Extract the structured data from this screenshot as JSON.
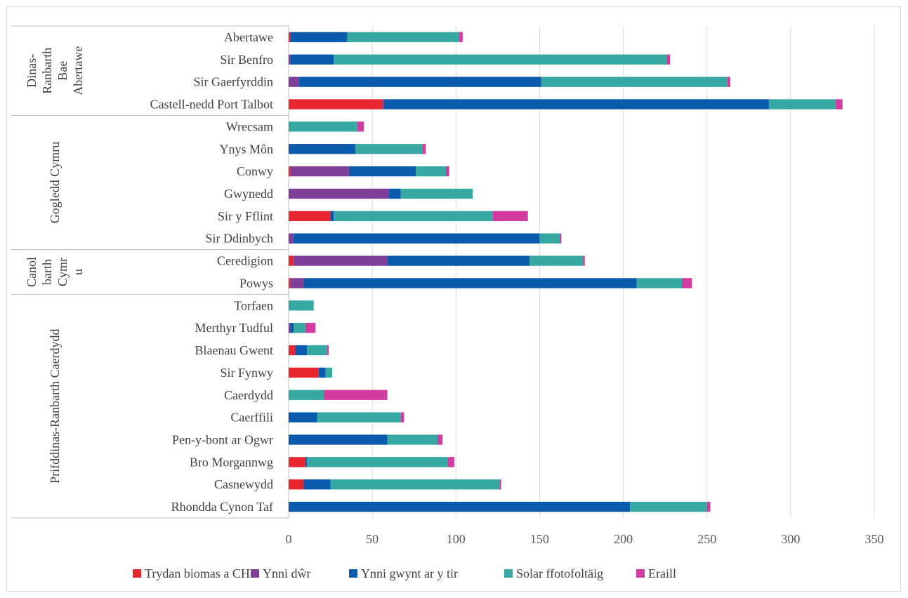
{
  "chart_data": {
    "type": "bar",
    "orientation": "horizontal",
    "stacked": true,
    "xlim": [
      0,
      350
    ],
    "x_ticks": [
      0,
      50,
      100,
      150,
      200,
      250,
      300,
      350
    ],
    "grid": true,
    "legend_position": "bottom",
    "groups": [
      {
        "label": "Dinas-Ranbarth Bae Abertawe",
        "label_lines": [
          "Dinas-",
          "Ranbarth",
          "Bae",
          "Abertawe"
        ],
        "categories": [
          "Abertawe",
          "Sir Benfro",
          "Sir Gaerfyrddin",
          "Castell-nedd Port Talbot"
        ]
      },
      {
        "label": "Gogledd Cymru",
        "label_lines": [
          "Gogledd Cymru"
        ],
        "categories": [
          "Wrecsam",
          "Ynys Môn",
          "Conwy",
          "Gwynedd",
          "Sir y Fflint",
          "Sir Ddinbych"
        ]
      },
      {
        "label": "Canolbarth Cymru",
        "label_lines": [
          "Canol",
          "barth",
          "Cymr",
          "u"
        ],
        "categories": [
          "Ceredigion",
          "Powys"
        ]
      },
      {
        "label": "Prifddinas-Ranbarth Caerdydd",
        "label_lines": [
          "Prifddinas-Ranbarth Caerdydd"
        ],
        "categories": [
          "Torfaen",
          "Merthyr Tudful",
          "Blaenau Gwent",
          "Sir Fynwy",
          "Caerdydd",
          "Caerffili",
          "Pen-y-bont ar Ogwr",
          "Bro Morgannwg",
          "Casnewydd",
          "Rhondda Cynon Taf"
        ]
      }
    ],
    "categories": [
      "Abertawe",
      "Sir Benfro",
      "Sir Gaerfyrddin",
      "Castell-nedd Port Talbot",
      "Wrecsam",
      "Ynys Môn",
      "Conwy",
      "Gwynedd",
      "Sir y Fflint",
      "Sir Ddinbych",
      "Ceredigion",
      "Powys",
      "Torfaen",
      "Merthyr Tudful",
      "Blaenau Gwent",
      "Sir Fynwy",
      "Caerdydd",
      "Caerffili",
      "Pen-y-bont ar Ogwr",
      "Bro Morgannwg",
      "Casnewydd",
      "Rhondda Cynon Taf"
    ],
    "series": [
      {
        "name": "Trydan biomas a CHP",
        "color": "#e8262f",
        "values": [
          1,
          0,
          0,
          56,
          0,
          0,
          1,
          0,
          25,
          0,
          3,
          1,
          0,
          0,
          4,
          18,
          0,
          0,
          0,
          10,
          9,
          0
        ]
      },
      {
        "name": "Ynni dŵr",
        "color": "#7f3f98",
        "values": [
          0,
          1,
          6,
          1,
          0,
          0,
          35,
          60,
          0,
          3,
          56,
          8,
          0,
          1,
          0,
          0,
          0,
          0,
          0,
          0,
          0,
          0
        ]
      },
      {
        "name": "Ynni gwynt ar y tir",
        "color": "#0a5aad",
        "values": [
          34,
          26,
          145,
          230,
          0,
          40,
          40,
          7,
          2,
          147,
          85,
          199,
          0,
          2,
          7,
          4,
          0,
          17,
          59,
          1,
          16,
          204
        ]
      },
      {
        "name": "Solar ffotofoltäig",
        "color": "#36a9a3",
        "values": [
          67,
          199,
          111,
          40,
          41,
          40,
          18,
          43,
          95,
          12,
          32,
          27,
          15,
          7,
          12,
          4,
          21,
          50,
          30,
          84,
          101,
          46
        ]
      },
      {
        "name": "Eraill",
        "color": "#d23ca0",
        "values": [
          2,
          2,
          2,
          4,
          4,
          2,
          2,
          0,
          21,
          1,
          1,
          6,
          0,
          6,
          1,
          0,
          38,
          2,
          3,
          4,
          1,
          2
        ]
      }
    ]
  }
}
